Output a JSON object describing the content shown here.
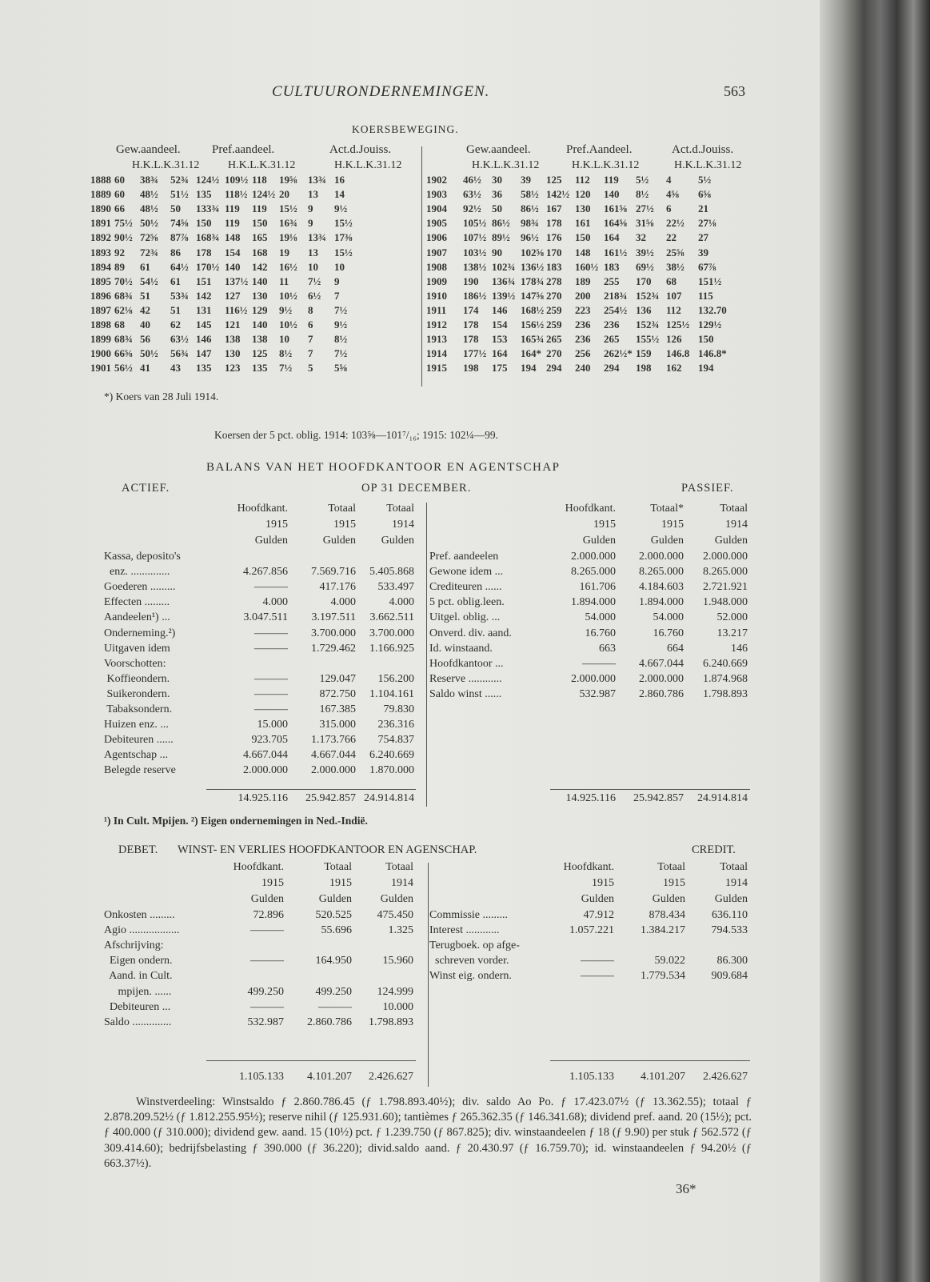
{
  "header": {
    "running_title": "CULTUURONDERNEMINGEN.",
    "page_number": "563"
  },
  "koers": {
    "title": "KOERSBEWEGING.",
    "left_groups": [
      "Gew.aandeel.",
      "Pref.aandeel.",
      "Act.d.Jouiss."
    ],
    "right_groups": [
      "Gew.aandeel.",
      "Pref.Aandeel.",
      "Act.d.Jouiss."
    ],
    "sub_header": "H.K.L.K.31.12",
    "sub_cols": [
      "H.K.",
      "L.K.",
      "31.12"
    ],
    "left_rows": [
      [
        "1888",
        "60",
        "38¾",
        "52¾",
        "124½",
        "109½",
        "118",
        "19⅝",
        "13¾",
        "16"
      ],
      [
        "1889",
        "60",
        "48½",
        "51½",
        "135",
        "118½",
        "124½",
        "20",
        "13",
        "14"
      ],
      [
        "1890",
        "66",
        "48½",
        "50",
        "133¾",
        "119",
        "119",
        "15½",
        "9",
        "9½"
      ],
      [
        "1891",
        "75½",
        "50½",
        "74⅝",
        "150",
        "119",
        "150",
        "16¾",
        "9",
        "15½"
      ],
      [
        "1892",
        "90½",
        "72⅝",
        "87⅞",
        "168¾",
        "148",
        "165",
        "19⅛",
        "13¾",
        "17⅜"
      ],
      [
        "1893",
        "92",
        "72¾",
        "86",
        "178",
        "154",
        "168",
        "19",
        "13",
        "15½"
      ],
      [
        "1894",
        "89",
        "61",
        "64½",
        "170½",
        "140",
        "142",
        "16½",
        "10",
        "10"
      ],
      [
        "1895",
        "70½",
        "54½",
        "61",
        "151",
        "137½",
        "140",
        "11",
        "7½",
        "9"
      ],
      [
        "1896",
        "68¾",
        "51",
        "53¾",
        "142",
        "127",
        "130",
        "10½",
        "6½",
        "7"
      ],
      [
        "1897",
        "62⅛",
        "42",
        "51",
        "131",
        "116½",
        "129",
        "9½",
        "8",
        "7½"
      ],
      [
        "1898",
        "68",
        "40",
        "62",
        "145",
        "121",
        "140",
        "10½",
        "6",
        "9½"
      ],
      [
        "1899",
        "68¾",
        "56",
        "63½",
        "146",
        "138",
        "138",
        "10",
        "7",
        "8½"
      ],
      [
        "1900",
        "66⅝",
        "50½",
        "56¾",
        "147",
        "130",
        "125",
        "8½",
        "7",
        "7½"
      ],
      [
        "1901",
        "56½",
        "41",
        "43",
        "135",
        "123",
        "135",
        "7½",
        "5",
        "5⅝"
      ]
    ],
    "right_rows": [
      [
        "1902",
        "46½",
        "30",
        "39",
        "125",
        "112",
        "119",
        "5½",
        "4",
        "5½"
      ],
      [
        "1903",
        "63½",
        "36",
        "58½",
        "142½",
        "120",
        "140",
        "8½",
        "4⅝",
        "6⅝"
      ],
      [
        "1904",
        "92½",
        "50",
        "86½",
        "167",
        "130",
        "161⅝",
        "27½",
        "6",
        "21"
      ],
      [
        "1905",
        "105½",
        "86½",
        "98¾",
        "178",
        "161",
        "164⅝",
        "31⅝",
        "22½",
        "27⅛"
      ],
      [
        "1906",
        "107½",
        "89½",
        "96½",
        "176",
        "150",
        "164",
        "32",
        "22",
        "27"
      ],
      [
        "1907",
        "103½",
        "90",
        "102⅝",
        "170",
        "148",
        "161½",
        "39½",
        "25⅝",
        "39"
      ],
      [
        "1908",
        "138½",
        "102¾",
        "136½",
        "183",
        "160½",
        "183",
        "69½",
        "38½",
        "67⅞"
      ],
      [
        "1909",
        "190",
        "136¾",
        "178¾",
        "278",
        "189",
        "255",
        "170",
        "68",
        "151½"
      ],
      [
        "1910",
        "186½",
        "139½",
        "147⅝",
        "270",
        "200",
        "218¾",
        "152¾",
        "107",
        "115"
      ],
      [
        "1911",
        "174",
        "146",
        "168½",
        "259",
        "223",
        "254½",
        "136",
        "112",
        "132.70"
      ],
      [
        "1912",
        "178",
        "154",
        "156½",
        "259",
        "236",
        "236",
        "152¾",
        "125½",
        "129½"
      ],
      [
        "1913",
        "178",
        "153",
        "165¾",
        "265",
        "236",
        "265",
        "155½",
        "126",
        "150"
      ],
      [
        "1914",
        "177½",
        "164",
        "164*",
        "270",
        "256",
        "262½*",
        "159",
        "146.8",
        "146.8*"
      ],
      [
        "1915",
        "198",
        "175",
        "194",
        "294",
        "240",
        "294",
        "198",
        "162",
        "194"
      ]
    ],
    "footnote": "*) Koers van 28 Juli 1914."
  },
  "oblig_line": "Koersen der 5 pct. oblig. 1914: 103⅝—101⁷/₁₆; 1915: 102¼—99.",
  "balans": {
    "title": "BALANS VAN HET HOOFDKANTOOR EN AGENTSCHAP",
    "subtitle": "OP 31 DECEMBER.",
    "left_side": "ACTIEF.",
    "right_side": "PASSIEF.",
    "left_headers": [
      [
        "Hoofdkant.",
        "1915",
        "Gulden"
      ],
      [
        "Totaal",
        "1915",
        "Gulden"
      ],
      [
        "Totaal",
        "1914",
        "Gulden"
      ]
    ],
    "right_headers": [
      [
        "Hoofdkant.",
        "1915",
        "Gulden"
      ],
      [
        "Totaal*",
        "1915",
        "Gulden"
      ],
      [
        "Totaal",
        "1914",
        "Gulden"
      ]
    ],
    "actief": [
      [
        "Kassa, deposito's",
        "",
        "",
        ""
      ],
      [
        "  enz. ..............",
        "4.267.856",
        "7.569.716",
        "5.405.868"
      ],
      [
        "Goederen .........",
        "———",
        "417.176",
        "533.497"
      ],
      [
        "Effecten .........",
        "4.000",
        "4.000",
        "4.000"
      ],
      [
        "Aandeelen¹) ...",
        "3.047.511",
        "3.197.511",
        "3.662.511"
      ],
      [
        "Onderneming.²)",
        "———",
        "3.700.000",
        "3.700.000"
      ],
      [
        "Uitgaven idem",
        "———",
        "1.729.462",
        "1.166.925"
      ],
      [
        "Voorschotten:",
        "",
        "",
        ""
      ],
      [
        " Koffieondern.",
        "———",
        "129.047",
        "156.200"
      ],
      [
        " Suikerondern.",
        "———",
        "872.750",
        "1.104.161"
      ],
      [
        " Tabaksondern.",
        "———",
        "167.385",
        "79.830"
      ],
      [
        "Huizen enz. ...",
        "15.000",
        "315.000",
        "236.316"
      ],
      [
        "Debiteuren ......",
        "923.705",
        "1.173.766",
        "754.837"
      ],
      [
        "Agentschap ...",
        "4.667.044",
        "4.667.044",
        "6.240.669"
      ],
      [
        "Belegde reserve",
        "2.000.000",
        "2.000.000",
        "1.870.000"
      ]
    ],
    "passief": [
      [
        "Pref. aandeelen",
        "2.000.000",
        "2.000.000",
        "2.000.000"
      ],
      [
        "Gewone idem ...",
        "8.265.000",
        "8.265.000",
        "8.265.000"
      ],
      [
        "Crediteuren ......",
        "161.706",
        "4.184.603",
        "2.721.921"
      ],
      [
        "5 pct. oblig.leen.",
        "1.894.000",
        "1.894.000",
        "1.948.000"
      ],
      [
        "Uitgel. oblig. ...",
        "54.000",
        "54.000",
        "52.000"
      ],
      [
        "Onverd. div. aand.",
        "16.760",
        "16.760",
        "13.217"
      ],
      [
        "Id. winstaand.",
        "663",
        "664",
        "146"
      ],
      [
        "Hoofdkantoor ...",
        "———",
        "4.667.044",
        "6.240.669"
      ],
      [
        "Reserve ............",
        "2.000.000",
        "2.000.000",
        "1.874.968"
      ],
      [
        "Saldo winst ......",
        "532.987",
        "2.860.786",
        "1.798.893"
      ]
    ],
    "totals": [
      "14.925.116",
      "25.942.857",
      "24.914.814"
    ],
    "footnote": "¹) In Cult. Mpijen. ²) Eigen ondernemingen in Ned.-Indië."
  },
  "winst": {
    "title": "WINST- EN VERLIES HOOFDKANTOOR EN AGENSCHAP.",
    "left_side": "DEBET.",
    "right_side": "CREDIT.",
    "headers": [
      [
        "Hoofdkant.",
        "1915",
        "Gulden"
      ],
      [
        "Totaal",
        "1915",
        "Gulden"
      ],
      [
        "Totaal",
        "1914",
        "Gulden"
      ]
    ],
    "debet": [
      [
        "Onkosten .........",
        "72.896",
        "520.525",
        "475.450"
      ],
      [
        "Agio ..................",
        "———",
        "55.696",
        "1.325"
      ],
      [
        "Afschrijving:",
        "",
        "",
        ""
      ],
      [
        "  Eigen ondern.",
        "———",
        "164.950",
        "15.960"
      ],
      [
        "  Aand. in Cult.",
        "",
        "",
        ""
      ],
      [
        "     mpijen. ......",
        "499.250",
        "499.250",
        "124.999"
      ],
      [
        "  Debiteuren ...",
        "———",
        "———",
        "10.000"
      ],
      [
        "Saldo ..............",
        "532.987",
        "2.860.786",
        "1.798.893"
      ]
    ],
    "credit": [
      [
        "Commissie .........",
        "47.912",
        "878.434",
        "636.110"
      ],
      [
        "Interest ............",
        "1.057.221",
        "1.384.217",
        "794.533"
      ],
      [
        "Terugboek. op afge-",
        "",
        "",
        ""
      ],
      [
        "  schreven vorder.",
        "———",
        "59.022",
        "86.300"
      ],
      [
        "Winst eig. ondern.",
        "———",
        "1.779.534",
        "909.684"
      ]
    ],
    "totals": [
      "1.105.133",
      "4.101.207",
      "2.426.627"
    ]
  },
  "winstverdeeling": "Winstverdeeling: Winstsaldo ƒ 2.860.786.45 (ƒ 1.798.893.40½); div. saldo Ao Po. ƒ 17.423.07½ (ƒ 13.362.55); totaal ƒ 2.878.209.52½ (ƒ 1.812.255.95½); reserve nihil (ƒ 125.931.60); tantièmes ƒ 265.362.35 (ƒ 146.341.68); dividend pref. aand. 20 (15½); pct. ƒ 400.000 (ƒ 310.000); dividend gew. aand. 15 (10½) pct. ƒ 1.239.750 (ƒ 867.825); div. winstaandeelen ƒ 18 (ƒ 9.90) per stuk ƒ 562.572 (ƒ 309.414.60); bedrijfsbelasting ƒ 390.000 (ƒ 36.220); divid.saldo aand. ƒ 20.430.97 (ƒ 16.759.70); id. winstaandeelen ƒ 94.20½ (ƒ 663.37½).",
  "signature": "36*"
}
